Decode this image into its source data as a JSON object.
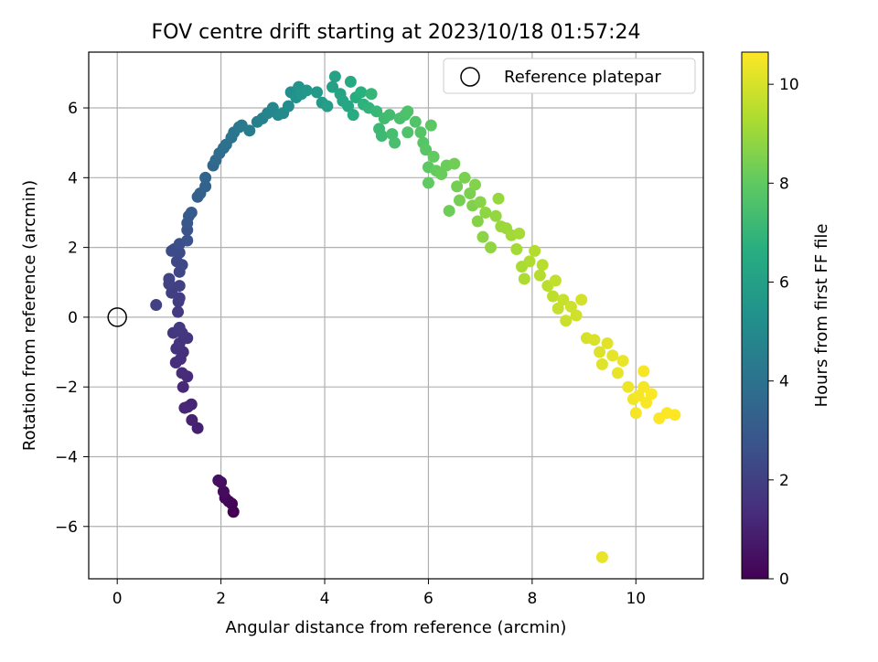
{
  "chart_data": {
    "type": "scatter",
    "title": "FOV centre drift starting at 2023/10/18 01:57:24",
    "xlabel": "Angular distance from reference (arcmin)",
    "ylabel": "Rotation from reference (arcmin)",
    "xlim": [
      -0.55,
      11.3
    ],
    "ylim": [
      -7.5,
      7.6
    ],
    "xticks": [
      "0",
      "2",
      "4",
      "6",
      "8",
      "10"
    ],
    "yticks": [
      "−6",
      "−4",
      "−2",
      "0",
      "2",
      "4",
      "6"
    ],
    "grid": true,
    "legend": {
      "placement": "top-right",
      "entries": [
        "Reference platepar"
      ]
    },
    "reference_point": {
      "x": 0,
      "y": 0
    },
    "colorbar": {
      "label": "Hours from first FF file",
      "range": [
        0,
        10.65
      ],
      "ticks": [
        "0",
        "2",
        "4",
        "6",
        "8",
        "10"
      ],
      "colormap": "viridis"
    },
    "points": [
      [
        2.24,
        -5.58,
        0.0
      ],
      [
        2.21,
        -5.35,
        0.08
      ],
      [
        2.15,
        -5.28,
        0.15
      ],
      [
        2.08,
        -5.18,
        0.22
      ],
      [
        2.05,
        -5.0,
        0.3
      ],
      [
        2.0,
        -4.73,
        0.38
      ],
      [
        1.95,
        -4.68,
        0.45
      ],
      [
        1.55,
        -3.18,
        0.95
      ],
      [
        1.44,
        -2.95,
        1.0
      ],
      [
        1.43,
        -2.5,
        1.05
      ],
      [
        1.36,
        -2.57,
        1.1
      ],
      [
        1.3,
        -2.6,
        1.15
      ],
      [
        1.27,
        -2.0,
        1.2
      ],
      [
        1.35,
        -1.7,
        1.25
      ],
      [
        1.25,
        -1.6,
        1.3
      ],
      [
        1.13,
        -1.3,
        1.35
      ],
      [
        1.22,
        -1.2,
        1.4
      ],
      [
        1.27,
        -1.0,
        1.45
      ],
      [
        1.14,
        -0.9,
        1.5
      ],
      [
        1.2,
        -0.75,
        1.55
      ],
      [
        1.35,
        -0.6,
        1.6
      ],
      [
        1.08,
        -0.45,
        1.65
      ],
      [
        1.25,
        -0.45,
        1.7
      ],
      [
        1.2,
        -0.3,
        1.75
      ],
      [
        1.17,
        0.15,
        1.8
      ],
      [
        1.18,
        0.45,
        1.85
      ],
      [
        1.2,
        0.55,
        1.9
      ],
      [
        1.05,
        0.7,
        1.95
      ],
      [
        1.2,
        0.9,
        2.0
      ],
      [
        0.75,
        0.35,
        2.05
      ],
      [
        1.0,
        0.95,
        2.1
      ],
      [
        1.0,
        1.1,
        2.15
      ],
      [
        1.2,
        1.3,
        2.2
      ],
      [
        1.25,
        1.5,
        2.25
      ],
      [
        1.15,
        1.6,
        2.3
      ],
      [
        1.2,
        1.85,
        2.35
      ],
      [
        1.1,
        1.95,
        2.4
      ],
      [
        1.05,
        1.9,
        2.45
      ],
      [
        1.2,
        2.1,
        2.55
      ],
      [
        1.35,
        2.2,
        2.65
      ],
      [
        1.35,
        2.5,
        2.75
      ],
      [
        1.35,
        2.7,
        2.85
      ],
      [
        1.38,
        2.9,
        2.95
      ],
      [
        1.43,
        3.0,
        3.05
      ],
      [
        1.55,
        3.45,
        3.15
      ],
      [
        1.6,
        3.55,
        3.25
      ],
      [
        1.7,
        3.75,
        3.35
      ],
      [
        1.7,
        4.0,
        3.45
      ],
      [
        1.85,
        4.35,
        3.55
      ],
      [
        1.9,
        4.5,
        3.65
      ],
      [
        1.97,
        4.7,
        3.75
      ],
      [
        2.05,
        4.85,
        3.85
      ],
      [
        2.1,
        4.95,
        3.95
      ],
      [
        2.2,
        5.15,
        4.05
      ],
      [
        2.25,
        5.3,
        4.15
      ],
      [
        2.35,
        5.45,
        4.25
      ],
      [
        2.4,
        5.5,
        4.35
      ],
      [
        2.55,
        5.35,
        4.45
      ],
      [
        2.7,
        5.6,
        4.55
      ],
      [
        2.8,
        5.7,
        4.65
      ],
      [
        2.9,
        5.85,
        4.75
      ],
      [
        3.0,
        6.0,
        4.85
      ],
      [
        3.1,
        5.8,
        4.95
      ],
      [
        3.2,
        5.85,
        5.05
      ],
      [
        3.3,
        6.05,
        5.15
      ],
      [
        3.35,
        6.45,
        5.25
      ],
      [
        3.45,
        6.3,
        5.35
      ],
      [
        3.5,
        6.6,
        5.45
      ],
      [
        3.55,
        6.4,
        5.55
      ],
      [
        3.65,
        6.5,
        5.6
      ],
      [
        3.85,
        6.45,
        5.7
      ],
      [
        3.95,
        6.15,
        5.8
      ],
      [
        4.05,
        6.05,
        5.9
      ],
      [
        4.15,
        6.6,
        6.0
      ],
      [
        4.2,
        6.9,
        6.05
      ],
      [
        4.3,
        6.4,
        6.15
      ],
      [
        4.35,
        6.2,
        6.25
      ],
      [
        4.45,
        6.05,
        6.35
      ],
      [
        4.5,
        6.75,
        6.45
      ],
      [
        4.55,
        5.8,
        6.5
      ],
      [
        4.6,
        6.3,
        6.6
      ],
      [
        4.7,
        6.45,
        6.7
      ],
      [
        4.75,
        6.1,
        6.8
      ],
      [
        4.85,
        6.0,
        6.9
      ],
      [
        4.9,
        6.4,
        7.0
      ],
      [
        5.0,
        5.9,
        7.1
      ],
      [
        5.05,
        5.4,
        7.15
      ],
      [
        5.1,
        5.2,
        7.2
      ],
      [
        5.15,
        5.7,
        7.3
      ],
      [
        5.25,
        5.8,
        7.35
      ],
      [
        5.3,
        5.25,
        7.4
      ],
      [
        5.35,
        5.0,
        7.45
      ],
      [
        5.45,
        5.7,
        7.5
      ],
      [
        5.55,
        5.8,
        7.55
      ],
      [
        5.6,
        5.9,
        7.6
      ],
      [
        5.6,
        5.3,
        7.65
      ],
      [
        5.75,
        5.6,
        7.7
      ],
      [
        5.85,
        5.3,
        7.75
      ],
      [
        5.9,
        5.0,
        7.8
      ],
      [
        5.95,
        4.8,
        7.85
      ],
      [
        6.05,
        5.5,
        7.9
      ],
      [
        6.0,
        4.3,
        7.95
      ],
      [
        6.0,
        3.85,
        8.0
      ],
      [
        6.1,
        4.6,
        8.05
      ],
      [
        6.15,
        4.2,
        8.1
      ],
      [
        6.25,
        4.1,
        8.15
      ],
      [
        6.35,
        4.35,
        8.2
      ],
      [
        6.4,
        3.05,
        8.25
      ],
      [
        6.5,
        4.4,
        8.3
      ],
      [
        6.55,
        3.75,
        8.35
      ],
      [
        6.6,
        3.35,
        8.4
      ],
      [
        6.7,
        4.0,
        8.45
      ],
      [
        6.8,
        3.55,
        8.5
      ],
      [
        6.85,
        3.2,
        8.55
      ],
      [
        6.9,
        3.8,
        8.6
      ],
      [
        6.95,
        2.75,
        8.65
      ],
      [
        7.0,
        3.3,
        8.7
      ],
      [
        7.05,
        2.3,
        8.75
      ],
      [
        7.1,
        3.0,
        8.8
      ],
      [
        7.2,
        2.0,
        8.85
      ],
      [
        7.3,
        2.9,
        8.9
      ],
      [
        7.35,
        3.4,
        8.95
      ],
      [
        7.4,
        2.6,
        9.0
      ],
      [
        7.5,
        2.55,
        9.05
      ],
      [
        7.6,
        2.35,
        9.1
      ],
      [
        7.7,
        1.95,
        9.15
      ],
      [
        7.75,
        2.4,
        9.2
      ],
      [
        7.8,
        1.45,
        9.25
      ],
      [
        7.85,
        1.1,
        9.3
      ],
      [
        7.95,
        1.6,
        9.35
      ],
      [
        8.05,
        1.9,
        9.4
      ],
      [
        8.15,
        1.2,
        9.45
      ],
      [
        8.2,
        1.5,
        9.5
      ],
      [
        8.3,
        0.9,
        9.55
      ],
      [
        8.4,
        0.6,
        9.6
      ],
      [
        8.45,
        1.05,
        9.65
      ],
      [
        8.5,
        0.25,
        9.7
      ],
      [
        8.6,
        0.5,
        9.75
      ],
      [
        8.65,
        -0.1,
        9.8
      ],
      [
        8.75,
        0.3,
        9.85
      ],
      [
        8.85,
        0.05,
        9.9
      ],
      [
        8.95,
        0.5,
        9.95
      ],
      [
        9.05,
        -0.6,
        10.0
      ],
      [
        9.2,
        -0.65,
        10.05
      ],
      [
        9.3,
        -1.0,
        10.1
      ],
      [
        9.35,
        -1.35,
        10.15
      ],
      [
        9.45,
        -0.75,
        10.2
      ],
      [
        9.55,
        -1.1,
        10.25
      ],
      [
        9.65,
        -1.6,
        10.3
      ],
      [
        9.75,
        -1.25,
        10.35
      ],
      [
        9.85,
        -2.0,
        10.4
      ],
      [
        9.95,
        -2.35,
        10.45
      ],
      [
        10.0,
        -2.75,
        10.5
      ],
      [
        10.05,
        -2.25,
        10.52
      ],
      [
        10.15,
        -2.0,
        10.55
      ],
      [
        10.2,
        -2.45,
        10.58
      ],
      [
        10.3,
        -2.2,
        10.6
      ],
      [
        10.45,
        -2.9,
        10.62
      ],
      [
        10.6,
        -2.75,
        10.63
      ],
      [
        10.75,
        -2.8,
        10.65
      ],
      [
        10.15,
        -1.55,
        10.55
      ],
      [
        9.35,
        -6.88,
        10.3
      ]
    ]
  }
}
